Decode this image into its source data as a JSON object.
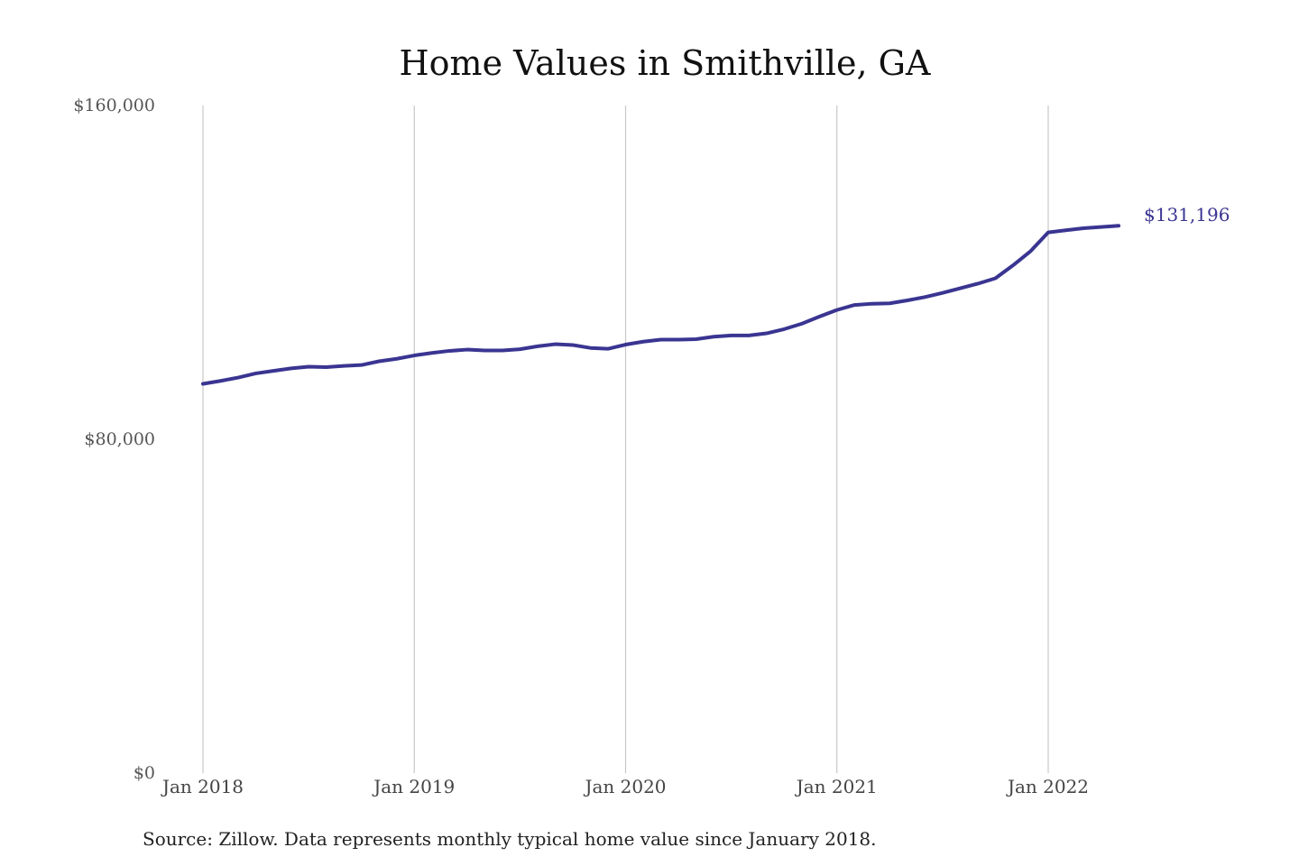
{
  "chart_data": {
    "type": "line",
    "title": "Home Values in Smithville, GA",
    "xlabel": "",
    "ylabel": "",
    "ylim": [
      0,
      160000
    ],
    "y_ticks": [
      {
        "value": 0,
        "label": "$0"
      },
      {
        "value": 80000,
        "label": "$80,000"
      },
      {
        "value": 160000,
        "label": "$160,000"
      }
    ],
    "x_ticks": [
      "Jan 2018",
      "Jan 2019",
      "Jan 2020",
      "Jan 2021",
      "Jan 2022"
    ],
    "vertical_grid": true,
    "horizontal_grid": false,
    "series": [
      {
        "color": "#3a3591",
        "x": [
          "2018-01",
          "2018-02",
          "2018-03",
          "2018-04",
          "2018-05",
          "2018-06",
          "2018-07",
          "2018-08",
          "2018-09",
          "2018-10",
          "2018-11",
          "2018-12",
          "2019-01",
          "2019-02",
          "2019-03",
          "2019-04",
          "2019-05",
          "2019-06",
          "2019-07",
          "2019-08",
          "2019-09",
          "2019-10",
          "2019-11",
          "2019-12",
          "2020-01",
          "2020-02",
          "2020-03",
          "2020-04",
          "2020-05",
          "2020-06",
          "2020-07",
          "2020-08",
          "2020-09",
          "2020-10",
          "2020-11",
          "2020-12",
          "2021-01",
          "2021-02",
          "2021-03",
          "2021-04",
          "2021-05",
          "2021-06",
          "2021-07",
          "2021-08",
          "2021-09",
          "2021-10",
          "2021-11",
          "2021-12",
          "2022-01",
          "2022-02",
          "2022-03",
          "2022-04",
          "2022-05"
        ],
        "values": [
          93300,
          94000,
          94800,
          95800,
          96400,
          97000,
          97400,
          97300,
          97600,
          97800,
          98700,
          99300,
          100100,
          100700,
          101200,
          101500,
          101300,
          101300,
          101600,
          102300,
          102800,
          102600,
          101900,
          101700,
          102700,
          103400,
          103900,
          103900,
          104000,
          104600,
          104900,
          104900,
          105400,
          106400,
          107700,
          109400,
          111000,
          112200,
          112500,
          112600,
          113300,
          114100,
          115100,
          116200,
          117300,
          118600,
          121700,
          125100,
          129600,
          130100,
          130600,
          130900,
          131196
        ]
      }
    ],
    "annotations": [
      "$131,196"
    ],
    "source": "Source: Zillow. Data represents monthly typical home value since January 2018."
  }
}
